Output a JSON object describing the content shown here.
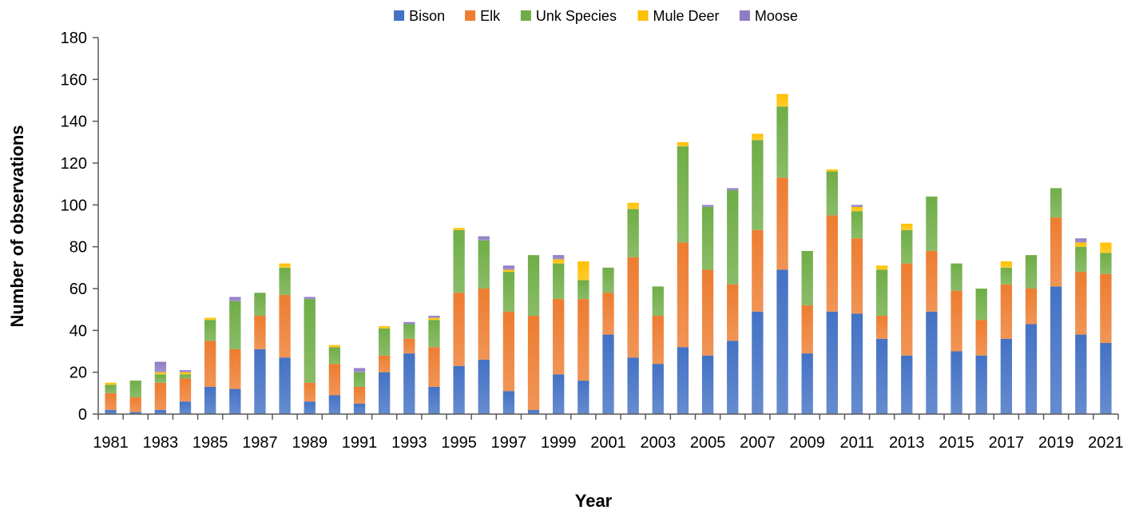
{
  "chart_data": {
    "type": "bar",
    "stacked": true,
    "xlabel": "Year",
    "ylabel": "Number of observations",
    "ylim": [
      0,
      180
    ],
    "yticks": [
      0,
      20,
      40,
      60,
      80,
      100,
      120,
      140,
      160,
      180
    ],
    "categories": [
      "1981",
      "1982",
      "1983",
      "1984",
      "1985",
      "1986",
      "1987",
      "1988",
      "1989",
      "1990",
      "1991",
      "1992",
      "1993",
      "1994",
      "1995",
      "1996",
      "1997",
      "1998",
      "1999",
      "2000",
      "2001",
      "2002",
      "2003",
      "2004",
      "2005",
      "2006",
      "2007",
      "2008",
      "2009",
      "2010",
      "2011",
      "2012",
      "2013",
      "2014",
      "2015",
      "2016",
      "2017",
      "2018",
      "2019",
      "2020",
      "2021"
    ],
    "xtick_labels": [
      "1981",
      "",
      "1983",
      "",
      "1985",
      "",
      "1987",
      "",
      "1989",
      "",
      "1991",
      "",
      "1993",
      "",
      "1995",
      "",
      "1997",
      "",
      "1999",
      "",
      "2001",
      "",
      "2003",
      "",
      "2005",
      "",
      "2007",
      "",
      "2009",
      "",
      "2011",
      "",
      "2013",
      "",
      "2015",
      "",
      "2017",
      "",
      "2019",
      "",
      "2021"
    ],
    "legend_position": "top",
    "grid": false,
    "series": [
      {
        "name": "Bison",
        "color": "#4472C4",
        "values": [
          2,
          1,
          2,
          6,
          13,
          12,
          31,
          27,
          6,
          9,
          5,
          20,
          29,
          13,
          23,
          26,
          11,
          2,
          19,
          16,
          38,
          27,
          24,
          32,
          28,
          35,
          49,
          69,
          29,
          49,
          48,
          36,
          28,
          49,
          30,
          28,
          36,
          43,
          61,
          38,
          34
        ]
      },
      {
        "name": "Elk",
        "color": "#ED7D31",
        "values": [
          8,
          7,
          13,
          11,
          22,
          19,
          16,
          30,
          9,
          15,
          8,
          8,
          7,
          19,
          35,
          34,
          38,
          45,
          36,
          39,
          20,
          48,
          23,
          50,
          41,
          27,
          39,
          44,
          23,
          46,
          36,
          11,
          44,
          29,
          29,
          17,
          26,
          17,
          33,
          30,
          33
        ]
      },
      {
        "name": "Unk Species",
        "color": "#70AD47",
        "values": [
          4,
          8,
          4,
          2,
          10,
          23,
          11,
          13,
          40,
          8,
          7,
          13,
          7,
          13,
          30,
          23,
          19,
          29,
          17,
          9,
          12,
          23,
          14,
          46,
          30,
          45,
          43,
          34,
          26,
          21,
          13,
          22,
          16,
          26,
          13,
          15,
          8,
          16,
          14,
          12,
          10
        ]
      },
      {
        "name": "Mule Deer",
        "color": "#FFC000",
        "values": [
          1,
          0,
          1,
          1,
          1,
          0,
          0,
          2,
          0,
          1,
          0,
          1,
          0,
          1,
          1,
          0,
          1,
          0,
          2,
          9,
          0,
          3,
          0,
          2,
          0,
          0,
          3,
          6,
          0,
          1,
          2,
          2,
          3,
          0,
          0,
          0,
          3,
          0,
          0,
          2,
          5
        ]
      },
      {
        "name": "Moose",
        "color": "#8E7CC3",
        "values": [
          0,
          0,
          5,
          1,
          0,
          2,
          0,
          0,
          1,
          0,
          2,
          0,
          1,
          1,
          0,
          2,
          2,
          0,
          2,
          0,
          0,
          0,
          0,
          0,
          1,
          1,
          0,
          0,
          0,
          0,
          1,
          0,
          0,
          0,
          0,
          0,
          0,
          0,
          0,
          2,
          0
        ]
      }
    ]
  }
}
